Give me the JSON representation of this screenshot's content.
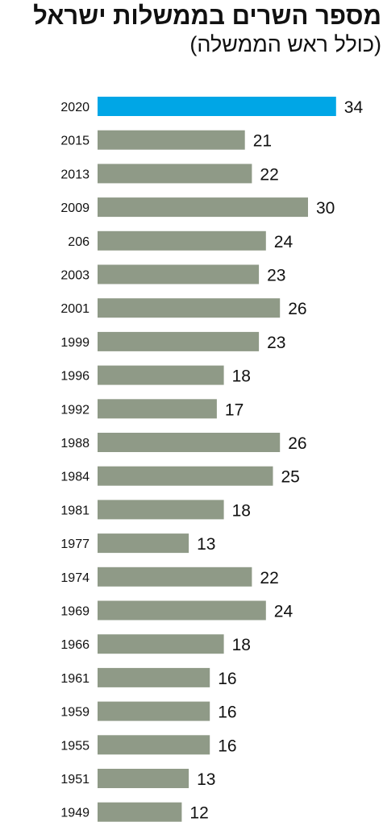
{
  "chart_data": {
    "type": "bar",
    "orientation": "horizontal",
    "title": "מספר השרים בממשלות ישראל",
    "subtitle": "(כולל ראש הממשלה)",
    "categories": [
      "2020",
      "2015",
      "2013",
      "2009",
      "206",
      "2003",
      "2001",
      "1999",
      "1996",
      "1992",
      "1988",
      "1984",
      "1981",
      "1977",
      "1974",
      "1969",
      "1966",
      "1961",
      "1959",
      "1955",
      "1951",
      "1949"
    ],
    "values": [
      34,
      21,
      22,
      30,
      24,
      23,
      26,
      23,
      18,
      17,
      26,
      25,
      18,
      13,
      22,
      24,
      18,
      16,
      16,
      16,
      13,
      12
    ],
    "highlight_category": "2020",
    "xlim": [
      0,
      34
    ],
    "grid": false,
    "legend": "none",
    "data_labels": true,
    "colors": {
      "bar": "#8f9a87",
      "highlight": "#00a6e6",
      "text": "#111111"
    }
  }
}
